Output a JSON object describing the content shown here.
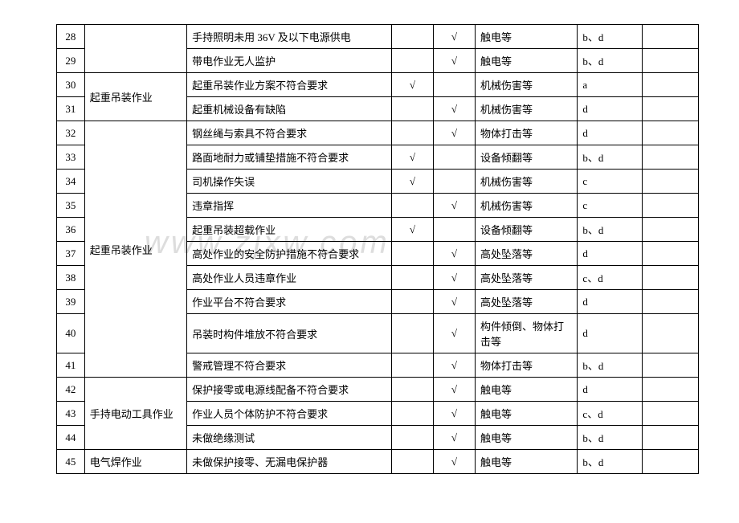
{
  "watermark": "www.zjxw.com",
  "table": {
    "columns": {
      "num_width": 30,
      "cat_width": 110,
      "desc_width": 220,
      "chk1_width": 45,
      "chk2_width": 45,
      "hazard_width": 110,
      "code_width": 70,
      "last_width": 60
    },
    "border_color": "#000000",
    "font_size": 13,
    "rows": [
      {
        "num": "28",
        "category": "",
        "desc": "手持照明未用 36V 及以下电源供电",
        "chk1": "",
        "chk2": "√",
        "hazard": "触电等",
        "code": "b、d",
        "last": ""
      },
      {
        "num": "29",
        "category": "",
        "desc": "带电作业无人监护",
        "chk1": "",
        "chk2": "√",
        "hazard": "触电等",
        "code": "b、d",
        "last": ""
      },
      {
        "num": "30",
        "category": "起重吊装作业",
        "desc": "起重吊装作业方案不符合要求",
        "chk1": "√",
        "chk2": "",
        "hazard": "机械伤害等",
        "code": "a",
        "last": ""
      },
      {
        "num": "31",
        "category": "",
        "desc": "起重机械设备有缺陷",
        "chk1": "",
        "chk2": "√",
        "hazard": "机械伤害等",
        "code": "d",
        "last": ""
      },
      {
        "num": "32",
        "category": "",
        "desc": "钢丝绳与索具不符合要求",
        "chk1": "",
        "chk2": "√",
        "hazard": "物体打击等",
        "code": "d",
        "last": ""
      },
      {
        "num": "33",
        "category": "",
        "desc": "路面地耐力或铺垫措施不符合要求",
        "chk1": "√",
        "chk2": "",
        "hazard": "设备倾翻等",
        "code": "b、d",
        "last": ""
      },
      {
        "num": "34",
        "category": "",
        "desc": "司机操作失误",
        "chk1": "√",
        "chk2": "",
        "hazard": "机械伤害等",
        "code": "c",
        "last": ""
      },
      {
        "num": "35",
        "category": "",
        "desc": "违章指挥",
        "chk1": "",
        "chk2": "√",
        "hazard": "机械伤害等",
        "code": "c",
        "last": ""
      },
      {
        "num": "36",
        "category": "",
        "desc": "起重吊装超载作业",
        "chk1": "√",
        "chk2": "",
        "hazard": "设备倾翻等",
        "code": "b、d",
        "last": ""
      },
      {
        "num": "37",
        "category": "起重吊装作业",
        "desc": "高处作业的安全防护措施不符合要求",
        "chk1": "",
        "chk2": "√",
        "hazard": "高处坠落等",
        "code": "d",
        "last": ""
      },
      {
        "num": "38",
        "category": "",
        "desc": "高处作业人员违章作业",
        "chk1": "",
        "chk2": "√",
        "hazard": "高处坠落等",
        "code": "c、d",
        "last": ""
      },
      {
        "num": "39",
        "category": "",
        "desc": "作业平台不符合要求",
        "chk1": "",
        "chk2": "√",
        "hazard": "高处坠落等",
        "code": "d",
        "last": ""
      },
      {
        "num": "40",
        "category": "",
        "desc": "吊装时构件堆放不符合要求",
        "chk1": "",
        "chk2": "√",
        "hazard": "构件倾倒、物体打击等",
        "code": "d",
        "last": ""
      },
      {
        "num": "41",
        "category": "",
        "desc": "警戒管理不符合要求",
        "chk1": "",
        "chk2": "√",
        "hazard": "物体打击等",
        "code": "b、d",
        "last": ""
      },
      {
        "num": "42",
        "category": "",
        "desc": "保护接零或电源线配备不符合要求",
        "chk1": "",
        "chk2": "√",
        "hazard": "触电等",
        "code": "d",
        "last": ""
      },
      {
        "num": "43",
        "category": "手持电动工具作业",
        "desc": "作业人员个体防护不符合要求",
        "chk1": "",
        "chk2": "√",
        "hazard": "触电等",
        "code": "c、d",
        "last": ""
      },
      {
        "num": "44",
        "category": "",
        "desc": "未做绝缘测试",
        "chk1": "",
        "chk2": "√",
        "hazard": "触电等",
        "code": "b、d",
        "last": ""
      },
      {
        "num": "45",
        "category": "电气焊作业",
        "desc": "未做保护接零、无漏电保护器",
        "chk1": "",
        "chk2": "√",
        "hazard": "触电等",
        "code": "b、d",
        "last": ""
      }
    ],
    "category_spans": [
      {
        "start": 0,
        "span": 2,
        "label": ""
      },
      {
        "start": 2,
        "span": 2,
        "label": "起重吊装作业"
      },
      {
        "start": 4,
        "span": 10,
        "label": "起重吊装作业",
        "label_row": 5
      },
      {
        "start": 14,
        "span": 3,
        "label": "手持电动工具作业",
        "label_row": 1
      },
      {
        "start": 17,
        "span": 1,
        "label": "电气焊作业"
      }
    ]
  }
}
